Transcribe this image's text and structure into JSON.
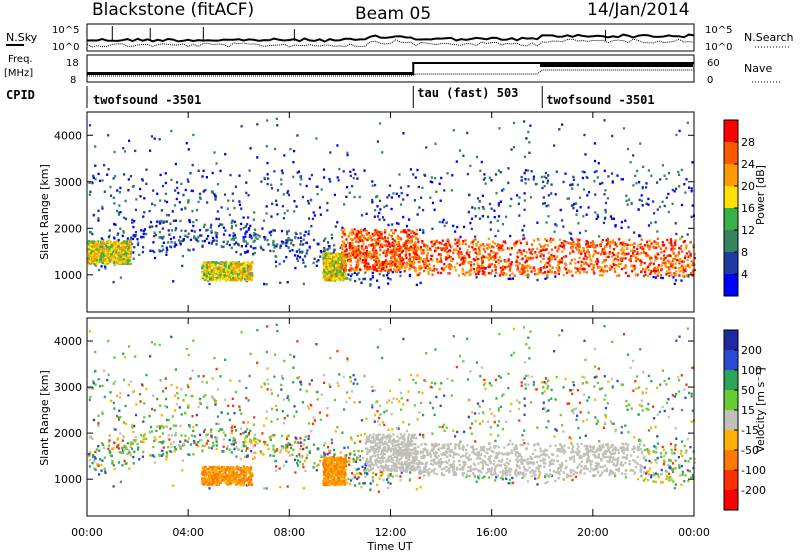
{
  "header": {
    "station": "Blackstone (fitACF)",
    "beam": "Beam 05",
    "date": "14/Jan/2014"
  },
  "noise_panel": {
    "left_label": "N.Sky",
    "right_label": "N.Search",
    "left_ticks": [
      "10^5",
      "10^0"
    ],
    "right_ticks": [
      "10^5",
      "10^0"
    ]
  },
  "freq_panel": {
    "left_label_line1": "Freq.",
    "left_label_line2": "[MHz]",
    "right_label": "Nave",
    "left_ticks": [
      "18",
      "8"
    ],
    "right_ticks": [
      "60",
      "0"
    ]
  },
  "cpid_panel": {
    "label": "CPID",
    "segments": [
      {
        "name": "twofsound -3501",
        "start_hour": 0,
        "end_hour": 12.9
      },
      {
        "name": "tau (fast) 503",
        "start_hour": 12.9,
        "end_hour": 18
      },
      {
        "name": "twofsound -3501",
        "start_hour": 18,
        "end_hour": 24
      }
    ]
  },
  "power_panel": {
    "ylabel": "Slant Range [km]",
    "yticks": [
      "4000",
      "3000",
      "2000",
      "1000"
    ],
    "colorbar_label": "Power [dB]",
    "colorbar_ticks": [
      "28",
      "24",
      "20",
      "16",
      "12",
      "8",
      "4"
    ],
    "colors": [
      "#ff0000",
      "#ff5a00",
      "#ff9b00",
      "#ffe000",
      "#39b04a",
      "#35845f",
      "#1f3aa0",
      "#0000ff"
    ]
  },
  "velocity_panel": {
    "ylabel": "Slant Range [km]",
    "yticks": [
      "4000",
      "3000",
      "2000",
      "1000"
    ],
    "colorbar_label": "Velocity [m s⁻¹]",
    "colorbar_ticks": [
      "200",
      "100",
      "50",
      "15",
      "-15",
      "-50",
      "-100",
      "-200"
    ],
    "colors": [
      "#1f2aa0",
      "#2a4ad0",
      "#2ea35a",
      "#66cc33",
      "#c0c0b8",
      "#ffb000",
      "#ff7800",
      "#ff3000",
      "#ff0000"
    ]
  },
  "xaxis": {
    "label": "Time UT",
    "ticks": [
      "00:00",
      "04:00",
      "08:00",
      "12:00",
      "16:00",
      "20:00",
      "00:00"
    ]
  },
  "chart_data": {
    "type": "heatmap",
    "title": "Blackstone (fitACF) Beam 05 14/Jan/2014",
    "xlabel": "Time UT",
    "ylabel": "Slant Range [km]",
    "xlim_hours": [
      0,
      24
    ],
    "ylim_km": [
      200,
      4500
    ],
    "power_scale_dB": [
      0,
      30
    ],
    "velocity_scale_ms": [
      -250,
      250
    ],
    "power_features": [
      {
        "t0": 0.0,
        "t1": 1.7,
        "r0": 1250,
        "r1": 1750,
        "level": "16-24 dB"
      },
      {
        "t0": 4.5,
        "t1": 6.5,
        "r0": 900,
        "r1": 1300,
        "level": "12-20 dB"
      },
      {
        "t0": 9.3,
        "t1": 10.2,
        "r0": 900,
        "r1": 1500,
        "level": "16-24 dB"
      },
      {
        "t0": 10.0,
        "t1": 13.0,
        "r0": 1100,
        "r1": 2000,
        "level": "20-28 dB"
      },
      {
        "t0": 13.0,
        "t1": 24.0,
        "r0": 1000,
        "r1": 1800,
        "level": "20-28 dB"
      }
    ],
    "velocity_features": [
      {
        "t0": 4.5,
        "t1": 6.5,
        "r0": 900,
        "r1": 1300,
        "level": "-50 to -100 m/s"
      },
      {
        "t0": 9.3,
        "t1": 10.2,
        "r0": 900,
        "r1": 1500,
        "level": "-50 to -100 m/s"
      },
      {
        "t0": 11.0,
        "t1": 13.0,
        "r0": 1200,
        "r1": 2000,
        "level": "-15 to 15 m/s"
      },
      {
        "t0": 13.0,
        "t1": 22.0,
        "r0": 1100,
        "r1": 1800,
        "level": "-15 to 15 m/s"
      }
    ]
  }
}
